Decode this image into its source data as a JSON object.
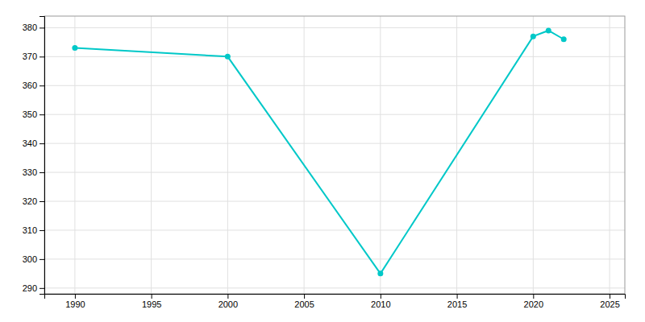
{
  "chart_data": {
    "type": "line",
    "x": [
      1990,
      2000,
      2010,
      2020,
      2021,
      2022
    ],
    "values": [
      373,
      370,
      295,
      377,
      379,
      376
    ],
    "color": "#00C8C8",
    "marker": "circle",
    "xlim": [
      1988,
      2026
    ],
    "ylim": [
      288,
      384
    ],
    "xticks": [
      1990,
      1995,
      2000,
      2005,
      2010,
      2015,
      2020,
      2025
    ],
    "yticks": [
      290,
      300,
      310,
      320,
      330,
      340,
      350,
      360,
      370,
      380
    ],
    "grid": true
  }
}
